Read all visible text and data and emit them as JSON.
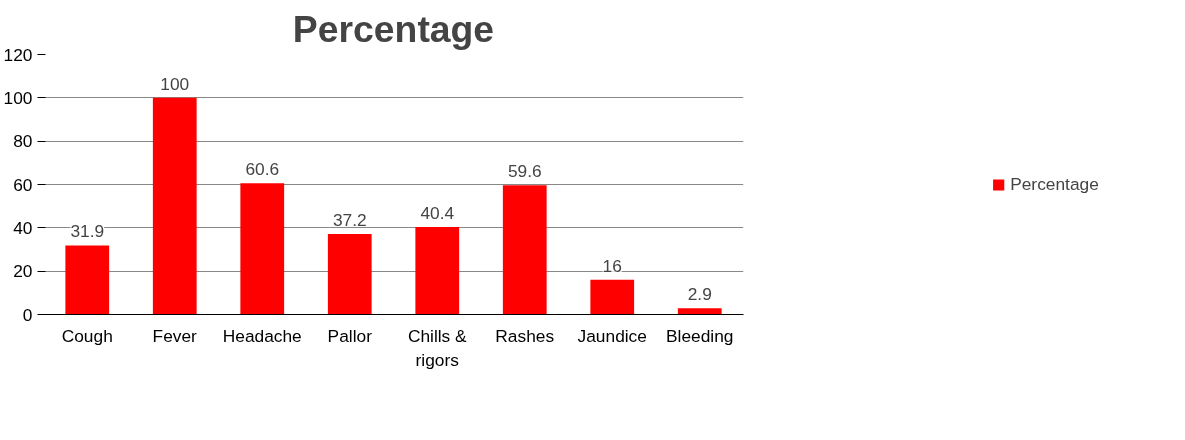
{
  "chart_data": {
    "type": "bar",
    "title": "Percentage",
    "categories": [
      "Cough",
      "Fever",
      "Headache",
      "Pallor",
      "Chills & rigors",
      "Rashes",
      "Jaundice",
      "Bleeding"
    ],
    "series": [
      {
        "name": "Percentage",
        "color": "#ff0000",
        "values": [
          31.9,
          100,
          60.6,
          37.2,
          40.4,
          59.6,
          16,
          2.9
        ]
      }
    ],
    "ylim": [
      0,
      120
    ],
    "yticks": [
      0,
      20,
      40,
      60,
      80,
      100,
      120
    ],
    "grid": "y",
    "legend": "right",
    "data_labels": true
  }
}
